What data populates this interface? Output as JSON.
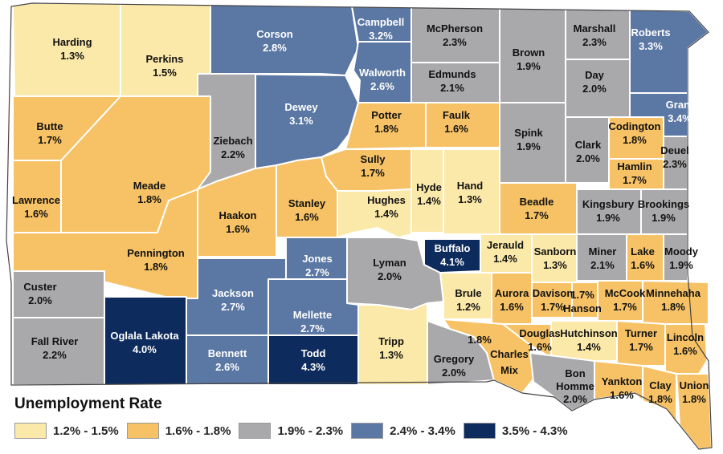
{
  "legend": {
    "title": "Unemployment Rate",
    "items": [
      {
        "label": "1.2% - 1.5%",
        "color": "#fbe9a9"
      },
      {
        "label": "1.6% - 1.8%",
        "color": "#f6c265"
      },
      {
        "label": "1.9% - 2.3%",
        "color": "#a9a9ab"
      },
      {
        "label": "2.4% - 3.4%",
        "color": "#5b77a3"
      },
      {
        "label": "3.5% - 4.3%",
        "color": "#0d2b5c"
      }
    ]
  },
  "counties": [
    {
      "name": "Harding",
      "rate": "1.3%",
      "cls": 0
    },
    {
      "name": "Perkins",
      "rate": "1.5%",
      "cls": 0
    },
    {
      "name": "Corson",
      "rate": "2.8%",
      "cls": 3
    },
    {
      "name": "Campbell",
      "rate": "3.2%",
      "cls": 3
    },
    {
      "name": "McPherson",
      "rate": "2.3%",
      "cls": 2
    },
    {
      "name": "Brown",
      "rate": "1.9%",
      "cls": 2
    },
    {
      "name": "Marshall",
      "rate": "2.3%",
      "cls": 2
    },
    {
      "name": "Roberts",
      "rate": "3.3%",
      "cls": 3
    },
    {
      "name": "Walworth",
      "rate": "2.6%",
      "cls": 3
    },
    {
      "name": "Edmunds",
      "rate": "2.1%",
      "cls": 2
    },
    {
      "name": "Day",
      "rate": "2.0%",
      "cls": 2
    },
    {
      "name": "Grant",
      "rate": "3.4%",
      "cls": 3
    },
    {
      "name": "Butte",
      "rate": "1.7%",
      "cls": 1
    },
    {
      "name": "Dewey",
      "rate": "3.1%",
      "cls": 3
    },
    {
      "name": "Ziebach",
      "rate": "2.2%",
      "cls": 2
    },
    {
      "name": "Potter",
      "rate": "1.8%",
      "cls": 1
    },
    {
      "name": "Faulk",
      "rate": "1.6%",
      "cls": 1
    },
    {
      "name": "Spink",
      "rate": "1.9%",
      "cls": 2
    },
    {
      "name": "Clark",
      "rate": "2.0%",
      "cls": 2
    },
    {
      "name": "Codington",
      "rate": "1.8%",
      "cls": 1
    },
    {
      "name": "Deuel",
      "rate": "2.3%",
      "cls": 2
    },
    {
      "name": "Hamlin",
      "rate": "1.7%",
      "cls": 1
    },
    {
      "name": "Meade",
      "rate": "1.8%",
      "cls": 1
    },
    {
      "name": "Lawrence",
      "rate": "1.6%",
      "cls": 1
    },
    {
      "name": "Sully",
      "rate": "1.7%",
      "cls": 1
    },
    {
      "name": "Hyde",
      "rate": "1.4%",
      "cls": 0
    },
    {
      "name": "Hand",
      "rate": "1.3%",
      "cls": 0
    },
    {
      "name": "Beadle",
      "rate": "1.7%",
      "cls": 1
    },
    {
      "name": "Kingsbury",
      "rate": "1.9%",
      "cls": 2
    },
    {
      "name": "Brookings",
      "rate": "1.9%",
      "cls": 2
    },
    {
      "name": "Haakon",
      "rate": "1.6%",
      "cls": 1
    },
    {
      "name": "Stanley",
      "rate": "1.6%",
      "cls": 1
    },
    {
      "name": "Hughes",
      "rate": "1.4%",
      "cls": 0
    },
    {
      "name": "Pennington",
      "rate": "1.8%",
      "cls": 1
    },
    {
      "name": "Jones",
      "rate": "2.7%",
      "cls": 3
    },
    {
      "name": "Lyman",
      "rate": "2.0%",
      "cls": 2
    },
    {
      "name": "Buffalo",
      "rate": "4.1%",
      "cls": 4
    },
    {
      "name": "Jerauld",
      "rate": "1.4%",
      "cls": 0
    },
    {
      "name": "Sanborn",
      "rate": "1.3%",
      "cls": 0
    },
    {
      "name": "Miner",
      "rate": "2.1%",
      "cls": 2
    },
    {
      "name": "Lake",
      "rate": "1.6%",
      "cls": 1
    },
    {
      "name": "Moody",
      "rate": "1.9%",
      "cls": 2
    },
    {
      "name": "Custer",
      "rate": "2.0%",
      "cls": 2
    },
    {
      "name": "Jackson",
      "rate": "2.7%",
      "cls": 3
    },
    {
      "name": "Mellette",
      "rate": "2.7%",
      "cls": 3
    },
    {
      "name": "Brule",
      "rate": "1.2%",
      "cls": 0
    },
    {
      "name": "Aurora",
      "rate": "1.6%",
      "cls": 1
    },
    {
      "name": "Davison",
      "rate": "1.7%",
      "cls": 1
    },
    {
      "name": "Hanson",
      "rate": "1.7%",
      "cls": 1
    },
    {
      "name": "McCook",
      "rate": "1.7%",
      "cls": 1
    },
    {
      "name": "Minnehaha",
      "rate": "1.8%",
      "cls": 1
    },
    {
      "name": "Fall River",
      "rate": "2.2%",
      "cls": 2
    },
    {
      "name": "Oglala Lakota",
      "rate": "4.0%",
      "cls": 4
    },
    {
      "name": "Bennett",
      "rate": "2.6%",
      "cls": 3
    },
    {
      "name": "Todd",
      "rate": "4.3%",
      "cls": 4
    },
    {
      "name": "Tripp",
      "rate": "1.3%",
      "cls": 0
    },
    {
      "name": "Gregory",
      "rate": "2.0%",
      "cls": 2
    },
    {
      "name": "Charles Mix",
      "rate": "1.8%",
      "cls": 1
    },
    {
      "name": "Douglas",
      "rate": "1.6%",
      "cls": 1
    },
    {
      "name": "Hutchinson",
      "rate": "1.4%",
      "cls": 0
    },
    {
      "name": "Turner",
      "rate": "1.7%",
      "cls": 1
    },
    {
      "name": "Lincoln",
      "rate": "1.6%",
      "cls": 1
    },
    {
      "name": "Bon Homme",
      "rate": "2.0%",
      "cls": 2
    },
    {
      "name": "Yankton",
      "rate": "1.6%",
      "cls": 1
    },
    {
      "name": "Clay",
      "rate": "1.8%",
      "cls": 1
    },
    {
      "name": "Union",
      "rate": "1.8%",
      "cls": 1
    }
  ]
}
